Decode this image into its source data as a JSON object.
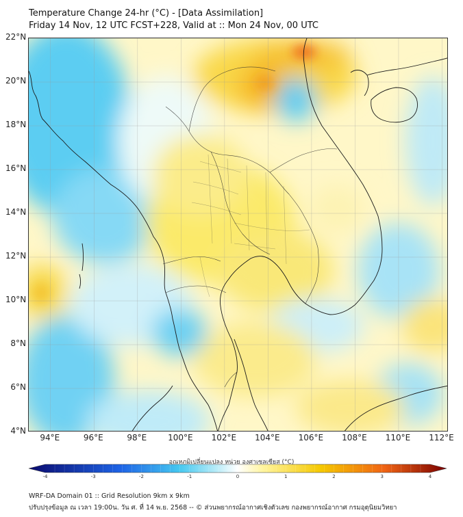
{
  "title": {
    "line1": "Temperature Change 24-hr (°C) - [Data Assimilation]",
    "line2": "Friday 14 Nov, 12 UTC FCST+228, Valid at :: Mon 24 Nov, 00 UTC"
  },
  "map": {
    "latitude_labels": [
      "22°N",
      "20°N",
      "18°N",
      "16°N",
      "14°N",
      "12°N",
      "10°N",
      "8°N",
      "6°N",
      "4°N"
    ],
    "longitude_labels": [
      "94°E",
      "96°E",
      "98°E",
      "100°E",
      "102°E",
      "104°E",
      "106°E",
      "108°E",
      "110°E",
      "112°E"
    ],
    "lat_range": [
      4,
      22
    ],
    "lon_range": [
      93,
      112.3
    ]
  },
  "colorbar": {
    "title": "อุณหภูมิเปลี่ยนแปลง หน่วย องศาเซลเซียส (°C)",
    "ticks": [
      "-4",
      "-3",
      "-2",
      "-1",
      "0",
      "1",
      "2",
      "3",
      "4"
    ],
    "range": [
      -4,
      4
    ],
    "colors": {
      "min": "#0a0a6e",
      "cold": "#1e64e6",
      "cool": "#46c8f0",
      "mild_cool": "#b9ecf8",
      "zero": "#ffffff",
      "mild_warm": "#fff5a0",
      "warm": "#f5c800",
      "hot": "#f06414",
      "max": "#7a0000"
    }
  },
  "footer": {
    "line1": "WRF-DA Domain 01 :: Grid Resolution 9km x 9km",
    "line2": "ปรับปรุงข้อมูล ณ เวลา 19:00น. วัน ศ. ที่ 14 พ.ย. 2568 -- © ส่วนพยากรณ์อากาศเชิงตัวเลข กองพยากรณ์อากาศ กรมอุตุนิยมวิทยา"
  }
}
